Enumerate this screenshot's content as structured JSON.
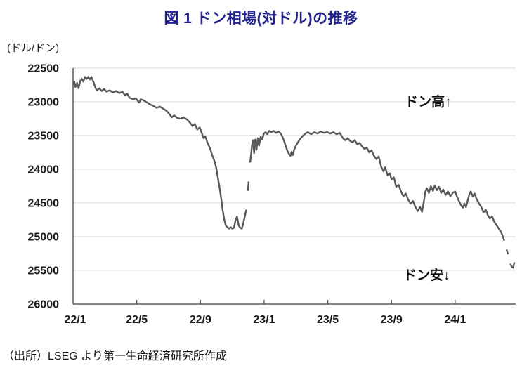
{
  "chart_data": {
    "type": "line",
    "title": "図 1 ドン相場(対ドル)の推移",
    "unit_label": "(ドル/ドン)",
    "source_note": "（出所）LSEG より第一生命経済研究所作成",
    "colors": {
      "title": "#23238E",
      "line": "#595959",
      "gridline": "#D9D9D9",
      "axis": "#3f3f3f",
      "text": "#1a1a1a"
    },
    "y_axis": {
      "min": 22500,
      "max": 26000,
      "step": 500,
      "inverted_sense": "values increase downward (dong depreciation)",
      "ticks": [
        22500,
        23000,
        23500,
        24000,
        24500,
        25000,
        25500,
        26000
      ]
    },
    "x_axis": {
      "tick_labels": [
        "22/1",
        "22/5",
        "22/9",
        "23/1",
        "23/5",
        "23/9",
        "24/1"
      ],
      "tick_months": [
        0,
        4,
        8,
        12,
        16,
        20,
        24
      ],
      "max_month": 27.8,
      "grid": false
    },
    "annotations": [
      {
        "text": "ドン高↑",
        "x_month": 22.3,
        "y_value": 22990
      },
      {
        "text": "ドン安↓",
        "x_month": 22.2,
        "y_value": 25560
      }
    ],
    "series": [
      {
        "color": "#595959",
        "points": [
          [
            0.0,
            22750
          ],
          [
            0.08,
            22700
          ],
          [
            0.15,
            22780
          ],
          [
            0.25,
            22720
          ],
          [
            0.35,
            22800
          ],
          [
            0.45,
            22690
          ],
          [
            0.55,
            22660
          ],
          [
            0.65,
            22700
          ],
          [
            0.75,
            22630
          ],
          [
            0.85,
            22660
          ],
          [
            0.95,
            22630
          ],
          [
            1.05,
            22670
          ],
          [
            1.15,
            22630
          ],
          [
            1.3,
            22720
          ],
          [
            1.4,
            22790
          ],
          [
            1.5,
            22830
          ],
          [
            1.65,
            22800
          ],
          [
            1.8,
            22840
          ],
          [
            1.95,
            22810
          ],
          [
            2.1,
            22850
          ],
          [
            2.3,
            22830
          ],
          [
            2.5,
            22860
          ],
          [
            2.7,
            22840
          ],
          [
            2.9,
            22870
          ],
          [
            3.1,
            22850
          ],
          [
            3.25,
            22900
          ],
          [
            3.4,
            22880
          ],
          [
            3.55,
            22940
          ],
          [
            3.75,
            22960
          ],
          [
            3.95,
            22950
          ],
          [
            4.05,
            22980
          ],
          [
            4.15,
            23010
          ],
          [
            4.25,
            22960
          ],
          [
            4.45,
            22980
          ],
          [
            4.65,
            23010
          ],
          [
            4.85,
            23040
          ],
          [
            5.05,
            23060
          ],
          [
            5.25,
            23090
          ],
          [
            5.45,
            23070
          ],
          [
            5.65,
            23100
          ],
          [
            5.85,
            23130
          ],
          [
            6.05,
            23180
          ],
          [
            6.2,
            23230
          ],
          [
            6.35,
            23200
          ],
          [
            6.55,
            23240
          ],
          [
            6.75,
            23250
          ],
          [
            6.95,
            23230
          ],
          [
            7.15,
            23260
          ],
          [
            7.35,
            23310
          ],
          [
            7.5,
            23360
          ],
          [
            7.65,
            23330
          ],
          [
            7.8,
            23410
          ],
          [
            7.95,
            23380
          ],
          [
            8.05,
            23440
          ],
          [
            8.2,
            23540
          ],
          [
            8.3,
            23510
          ],
          [
            8.45,
            23610
          ],
          [
            8.6,
            23690
          ],
          [
            8.75,
            23800
          ],
          [
            8.9,
            23890
          ],
          [
            9.0,
            23990
          ],
          [
            9.1,
            24130
          ],
          [
            9.2,
            24270
          ],
          [
            9.3,
            24430
          ],
          [
            9.4,
            24610
          ],
          [
            9.5,
            24750
          ],
          [
            9.6,
            24840
          ],
          [
            9.7,
            24860
          ],
          [
            9.8,
            24880
          ],
          [
            9.9,
            24860
          ],
          [
            10.0,
            24880
          ],
          [
            10.1,
            24870
          ],
          [
            10.2,
            24760
          ],
          [
            10.3,
            24700
          ],
          [
            10.4,
            24830
          ],
          [
            10.5,
            24870
          ],
          [
            10.6,
            24880
          ],
          [
            10.7,
            24790
          ],
          [
            10.8,
            24690
          ],
          [
            10.88,
            24600
          ],
          null,
          [
            10.98,
            24320
          ],
          [
            11.03,
            24180
          ],
          null,
          [
            11.12,
            23900
          ],
          [
            11.18,
            23780
          ],
          [
            11.24,
            23640
          ],
          [
            11.3,
            23570
          ],
          [
            11.37,
            23760
          ],
          [
            11.44,
            23560
          ],
          [
            11.52,
            23710
          ],
          [
            11.6,
            23540
          ],
          [
            11.68,
            23650
          ],
          [
            11.78,
            23520
          ],
          [
            11.88,
            23560
          ],
          [
            11.98,
            23470
          ],
          [
            12.1,
            23450
          ],
          [
            12.2,
            23480
          ],
          [
            12.32,
            23430
          ],
          [
            12.45,
            23450
          ],
          [
            12.6,
            23430
          ],
          [
            12.75,
            23460
          ],
          [
            12.9,
            23440
          ],
          [
            13.05,
            23470
          ],
          [
            13.15,
            23520
          ],
          [
            13.25,
            23580
          ],
          [
            13.35,
            23650
          ],
          [
            13.45,
            23720
          ],
          [
            13.55,
            23770
          ],
          [
            13.65,
            23800
          ],
          [
            13.73,
            23740
          ],
          [
            13.8,
            23790
          ],
          [
            13.9,
            23700
          ],
          [
            14.0,
            23650
          ],
          [
            14.15,
            23590
          ],
          [
            14.3,
            23540
          ],
          [
            14.45,
            23500
          ],
          [
            14.6,
            23470
          ],
          [
            14.75,
            23450
          ],
          [
            14.95,
            23480
          ],
          [
            15.15,
            23450
          ],
          [
            15.35,
            23470
          ],
          [
            15.55,
            23440
          ],
          [
            15.75,
            23460
          ],
          [
            15.95,
            23450
          ],
          [
            16.15,
            23470
          ],
          [
            16.35,
            23450
          ],
          [
            16.55,
            23480
          ],
          [
            16.75,
            23460
          ],
          [
            16.95,
            23540
          ],
          [
            17.1,
            23570
          ],
          [
            17.25,
            23540
          ],
          [
            17.4,
            23580
          ],
          [
            17.55,
            23600
          ],
          [
            17.7,
            23570
          ],
          [
            17.85,
            23630
          ],
          [
            18.0,
            23610
          ],
          [
            18.15,
            23660
          ],
          [
            18.3,
            23700
          ],
          [
            18.45,
            23680
          ],
          [
            18.6,
            23750
          ],
          [
            18.75,
            23720
          ],
          [
            18.9,
            23800
          ],
          [
            19.05,
            23850
          ],
          [
            19.2,
            23810
          ],
          [
            19.35,
            23960
          ],
          [
            19.5,
            24030
          ],
          [
            19.6,
            23970
          ],
          [
            19.75,
            24090
          ],
          [
            19.9,
            24060
          ],
          [
            20.0,
            24150
          ],
          [
            20.15,
            24120
          ],
          [
            20.3,
            24260
          ],
          [
            20.45,
            24230
          ],
          [
            20.6,
            24330
          ],
          [
            20.75,
            24400
          ],
          [
            20.9,
            24360
          ],
          [
            21.05,
            24450
          ],
          [
            21.2,
            24510
          ],
          [
            21.35,
            24470
          ],
          [
            21.5,
            24560
          ],
          [
            21.65,
            24620
          ],
          [
            21.8,
            24560
          ],
          [
            21.92,
            24630
          ],
          [
            22.02,
            24500
          ],
          [
            22.12,
            24340
          ],
          [
            22.22,
            24280
          ],
          [
            22.35,
            24350
          ],
          [
            22.48,
            24250
          ],
          [
            22.6,
            24320
          ],
          [
            22.72,
            24240
          ],
          [
            22.85,
            24310
          ],
          [
            22.98,
            24260
          ],
          [
            23.12,
            24350
          ],
          [
            23.25,
            24300
          ],
          [
            23.4,
            24380
          ],
          [
            23.55,
            24330
          ],
          [
            23.7,
            24400
          ],
          [
            23.85,
            24350
          ],
          [
            24.0,
            24330
          ],
          [
            24.12,
            24410
          ],
          [
            24.24,
            24470
          ],
          [
            24.36,
            24530
          ],
          [
            24.48,
            24570
          ],
          [
            24.58,
            24510
          ],
          [
            24.68,
            24560
          ],
          [
            24.78,
            24470
          ],
          [
            24.88,
            24380
          ],
          [
            24.98,
            24330
          ],
          [
            25.1,
            24400
          ],
          [
            25.22,
            24360
          ],
          [
            25.36,
            24450
          ],
          [
            25.5,
            24510
          ],
          [
            25.64,
            24560
          ],
          [
            25.78,
            24640
          ],
          [
            25.92,
            24600
          ],
          [
            26.05,
            24680
          ],
          [
            26.18,
            24730
          ],
          [
            26.32,
            24700
          ],
          [
            26.46,
            24780
          ],
          [
            26.6,
            24830
          ],
          [
            26.74,
            24880
          ],
          [
            26.88,
            24930
          ],
          [
            27.0,
            25000
          ],
          [
            27.08,
            25060
          ],
          null,
          [
            27.22,
            25190
          ],
          [
            27.32,
            25260
          ],
          null,
          [
            27.46,
            25400
          ],
          [
            27.56,
            25450
          ],
          [
            27.64,
            25460
          ],
          [
            27.72,
            25380
          ]
        ]
      }
    ]
  }
}
